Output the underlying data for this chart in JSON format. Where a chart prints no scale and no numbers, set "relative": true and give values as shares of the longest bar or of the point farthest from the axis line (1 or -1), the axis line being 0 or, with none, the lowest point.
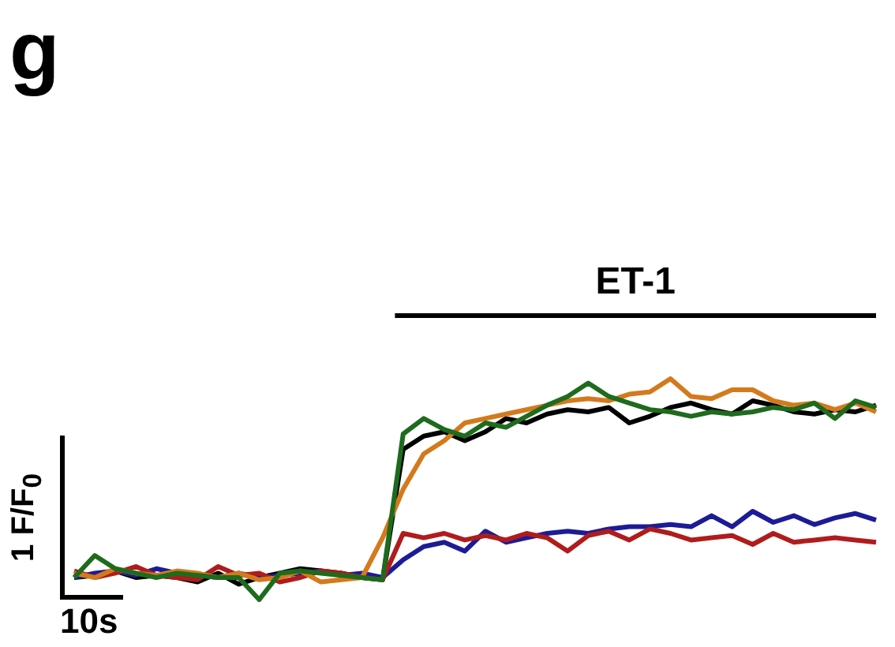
{
  "chart_data": {
    "type": "line",
    "title": "g",
    "relative": true,
    "tick_labels": false,
    "legend": false,
    "xlabel": "10s",
    "ylabel": "1 F/F$_{0}$",
    "annotations": [
      "ET-1"
    ],
    "categories": [
      null,
      null,
      null,
      null,
      null,
      null,
      null,
      null,
      null,
      null,
      null,
      null,
      null,
      null,
      null,
      null,
      null,
      null,
      null,
      null,
      null,
      null,
      null,
      null,
      null,
      null,
      null,
      null,
      null,
      null,
      null,
      null,
      null,
      null,
      null,
      null,
      null,
      null,
      null,
      null
    ],
    "series": [
      {
        "color": "#1e6b1e",
        "values": [
          0.1,
          0.2,
          0.14,
          0.12,
          0.1,
          0.12,
          0.11,
          0.1,
          0.1,
          0,
          0.12,
          0.13,
          0.12,
          0.11,
          0.1,
          0.09,
          0.75,
          0.82,
          0.77,
          0.74,
          0.8,
          0.78,
          0.83,
          0.88,
          0.92,
          0.98,
          0.92,
          0.89,
          0.86,
          0.85,
          0.83,
          0.85,
          0.84,
          0.85,
          0.87,
          0.86,
          0.89,
          0.82,
          0.9,
          0.87
        ]
      },
      {
        "color": "#d47a1c",
        "values": [
          0.12,
          0.1,
          0.14,
          0.12,
          0.11,
          0.13,
          0.12,
          0.1,
          0.12,
          0.09,
          0.1,
          0.13,
          0.08,
          0.09,
          0.1,
          0.28,
          0.5,
          0.66,
          0.72,
          0.8,
          0.82,
          0.84,
          0.86,
          0.88,
          0.9,
          0.91,
          0.9,
          0.93,
          0.94,
          1,
          0.92,
          0.91,
          0.95,
          0.95,
          0.9,
          0.88,
          0.89,
          0.86,
          0.89,
          0.85
        ]
      },
      {
        "color": "#b01c1c",
        "values": [
          0.13,
          0.1,
          0.12,
          0.15,
          0.11,
          0.1,
          0.09,
          0.15,
          0.11,
          0.12,
          0.08,
          0.1,
          0.13,
          0.12,
          0.1,
          0.09,
          0.3,
          0.28,
          0.3,
          0.27,
          0.29,
          0.27,
          0.3,
          0.28,
          0.22,
          0.29,
          0.31,
          0.27,
          0.32,
          0.3,
          0.27,
          0.28,
          0.29,
          0.25,
          0.3,
          0.26,
          0.27,
          0.28,
          0.27,
          0.26
        ]
      },
      {
        "color": "#1c1c96",
        "values": [
          0.1,
          0.12,
          0.13,
          0.11,
          0.14,
          0.12,
          0.11,
          0.1,
          0.12,
          0.1,
          0.11,
          0.12,
          0.13,
          0.11,
          0.12,
          0.1,
          0.18,
          0.24,
          0.26,
          0.22,
          0.31,
          0.26,
          0.28,
          0.3,
          0.31,
          0.3,
          0.32,
          0.33,
          0.33,
          0.34,
          0.33,
          0.38,
          0.33,
          0.4,
          0.35,
          0.38,
          0.34,
          0.37,
          0.39,
          0.36
        ]
      },
      {
        "color": "#000000",
        "values": [
          0.1,
          0.11,
          0.13,
          0.1,
          0.11,
          0.1,
          0.08,
          0.12,
          0.07,
          0.1,
          0.12,
          0.14,
          0.13,
          0.12,
          0.1,
          0.09,
          0.68,
          0.74,
          0.76,
          0.72,
          0.76,
          0.82,
          0.8,
          0.84,
          0.86,
          0.85,
          0.87,
          0.8,
          0.83,
          0.87,
          0.89,
          0.86,
          0.84,
          0.9,
          0.88,
          0.85,
          0.84,
          0.86,
          0.85,
          0.88
        ]
      }
    ]
  }
}
